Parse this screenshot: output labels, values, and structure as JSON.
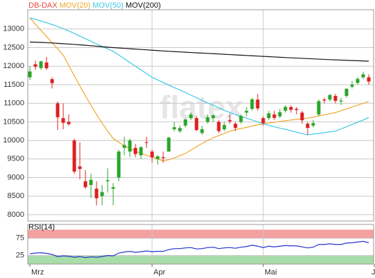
{
  "chart_data": [
    {
      "type": "candlestick",
      "name": "DB-DAX",
      "name_color": "#e8463c",
      "watermark": "flatex",
      "up_color": "#2aa52a",
      "down_color": "#dd2020",
      "categories": [
        "Mrz",
        null,
        null,
        null,
        null,
        null,
        null,
        null,
        null,
        null,
        null,
        null,
        null,
        null,
        null,
        null,
        null,
        null,
        null,
        null,
        null,
        null,
        "Apr",
        null,
        null,
        null,
        null,
        null,
        null,
        null,
        null,
        null,
        null,
        null,
        null,
        null,
        null,
        null,
        null,
        null,
        null,
        null,
        "Mai",
        null,
        null,
        null,
        null,
        null,
        null,
        null,
        null,
        null,
        null,
        null,
        null,
        null,
        null,
        null,
        null,
        null,
        null,
        null,
        "J"
      ],
      "open": [
        11700,
        12050,
        11950,
        12100,
        11650,
        11000,
        10600,
        10500,
        10000,
        9300,
        8900,
        8800,
        8700,
        8500,
        8900,
        8700,
        9000,
        9800,
        9700,
        9800,
        9600,
        9950,
        9700,
        9500,
        9550,
        9700,
        10300,
        10250,
        10400,
        10600,
        10600,
        10200,
        10500,
        10600,
        10500,
        10300,
        10550,
        10450,
        10500,
        10750,
        10850,
        11100,
        10600,
        10600,
        10700,
        10650,
        10800,
        10900,
        10850,
        10750,
        10450,
        10400,
        10700,
        11100,
        11100,
        11200,
        11050,
        11200,
        11450,
        11550,
        11700,
        11700,
        null
      ],
      "high": [
        12000,
        12150,
        12150,
        12250,
        11700,
        11050,
        11000,
        10700,
        10050,
        9950,
        9200,
        9100,
        8900,
        8800,
        9250,
        8850,
        9750,
        10100,
        10050,
        9900,
        9850,
        10100,
        9750,
        9600,
        9700,
        10100,
        10500,
        10400,
        10600,
        10750,
        10650,
        10400,
        10700,
        10700,
        10550,
        10500,
        10700,
        10500,
        10700,
        10900,
        11150,
        11250,
        10650,
        10800,
        10800,
        10850,
        10950,
        10950,
        10900,
        10800,
        10500,
        10550,
        11100,
        11150,
        11250,
        11250,
        11150,
        11400,
        11600,
        11700,
        11850,
        11780,
        null
      ],
      "low": [
        11630,
        11900,
        11900,
        11900,
        11400,
        10280,
        10300,
        10400,
        9100,
        8950,
        8700,
        8450,
        8250,
        8250,
        8600,
        8250,
        8900,
        9600,
        9550,
        9550,
        9500,
        9800,
        9400,
        9350,
        9400,
        9700,
        10250,
        10200,
        10350,
        10550,
        10250,
        10150,
        10450,
        10500,
        10200,
        10250,
        10450,
        10250,
        10450,
        10650,
        10800,
        10800,
        10400,
        10550,
        10550,
        10600,
        10750,
        10750,
        10700,
        10450,
        10150,
        10350,
        10650,
        11000,
        11050,
        11000,
        10950,
        11150,
        11400,
        11500,
        11650,
        11500,
        null
      ],
      "close": [
        11857,
        11985,
        12128,
        11944,
        11542,
        10625,
        10475,
        10439,
        9161,
        9232,
        8742,
        8939,
        8441,
        8610,
        8929,
        8742,
        9701,
        9874,
        10000,
        9633,
        9816,
        9936,
        9544,
        9571,
        9525,
        10075,
        10356,
        10333,
        10565,
        10696,
        10280,
        10301,
        10626,
        10676,
        10250,
        10416,
        10514,
        10337,
        10659,
        10796,
        11107,
        10862,
        10467,
        10730,
        10607,
        10760,
        10904,
        10825,
        10820,
        10542,
        10337,
        10465,
        11058,
        11075,
        11223,
        11065,
        11074,
        11391,
        11504,
        11657,
        11781,
        11586,
        null
      ],
      "series": [
        {
          "name": "MOV(20)",
          "color": "#f2a52a",
          "values": [
            13300,
            13130,
            12960,
            12800,
            12630,
            12470,
            12300,
            12020,
            11740,
            11470,
            11200,
            10950,
            10700,
            10470,
            10250,
            10050,
            9950,
            9860,
            9780,
            9710,
            9650,
            9600,
            9550,
            9500,
            9450,
            9480,
            9530,
            9590,
            9650,
            9740,
            9830,
            9920,
            10000,
            10070,
            10130,
            10190,
            10250,
            10290,
            10320,
            10350,
            10390,
            10420,
            10450,
            10470,
            10490,
            10510,
            10530,
            10550,
            10570,
            10580,
            10600,
            10630,
            10660,
            10690,
            10720,
            10750,
            10800,
            10850,
            10900,
            10950,
            11000,
            11050,
            null
          ]
        },
        {
          "name": "MOV(50)",
          "color": "#3cc8e6",
          "values": [
            13300,
            13260,
            13220,
            13170,
            13120,
            13070,
            13010,
            12950,
            12880,
            12810,
            12740,
            12670,
            12600,
            12530,
            12465,
            12400,
            12300,
            12200,
            12100,
            12000,
            11900,
            11800,
            11700,
            11630,
            11560,
            11490,
            11420,
            11360,
            11290,
            11220,
            11150,
            11080,
            11010,
            10950,
            10880,
            10810,
            10750,
            10700,
            10650,
            10600,
            10550,
            10500,
            10450,
            10410,
            10370,
            10330,
            10300,
            10260,
            10220,
            10190,
            10150,
            10170,
            10190,
            10210,
            10230,
            10250,
            10310,
            10370,
            10430,
            10490,
            10550,
            10620,
            null
          ]
        },
        {
          "name": "MOV(200)",
          "color": "#111111",
          "values": [
            12650,
            12645,
            12640,
            12632,
            12625,
            12615,
            12605,
            12597,
            12585,
            12575,
            12563,
            12550,
            12538,
            12525,
            12512,
            12500,
            12490,
            12480,
            12470,
            12460,
            12450,
            12440,
            12430,
            12420,
            12410,
            12400,
            12392,
            12384,
            12376,
            12368,
            12360,
            12352,
            12344,
            12336,
            12328,
            12320,
            12312,
            12304,
            12296,
            12288,
            12280,
            12272,
            12264,
            12256,
            12248,
            12240,
            12232,
            12225,
            12218,
            12211,
            12204,
            12197,
            12190,
            12183,
            12176,
            12170,
            12164,
            12158,
            12152,
            12146,
            12140,
            12135,
            null
          ]
        }
      ],
      "ylim": [
        7830,
        13520
      ],
      "yticks": [
        8000,
        8500,
        9000,
        9500,
        10000,
        10500,
        11000,
        11500,
        12000,
        12500,
        13000
      ],
      "grid": true
    },
    {
      "type": "line",
      "series": [
        {
          "name": "RSI(14)",
          "color": "#2233cc",
          "values": [
            30,
            32,
            33,
            31,
            28,
            22,
            24,
            23,
            20,
            22,
            19,
            21,
            20,
            22,
            25,
            24,
            32,
            35,
            37,
            34,
            36,
            38,
            36,
            37,
            37,
            42,
            45,
            45,
            47,
            48,
            44,
            45,
            48,
            49,
            45,
            47,
            48,
            46,
            49,
            51,
            55,
            52,
            48,
            52,
            50,
            52,
            54,
            53,
            53,
            50,
            47,
            49,
            57,
            57,
            59,
            57,
            57,
            61,
            62,
            64,
            66,
            62,
            null
          ]
        }
      ],
      "bands": [
        {
          "from": 75,
          "to": 100,
          "color": "#f4a0a0"
        },
        {
          "from": 0,
          "to": 25,
          "color": "#a8dca8"
        }
      ],
      "ylim": [
        0,
        115
      ],
      "yticks": [
        25,
        75
      ],
      "grid": true
    }
  ]
}
